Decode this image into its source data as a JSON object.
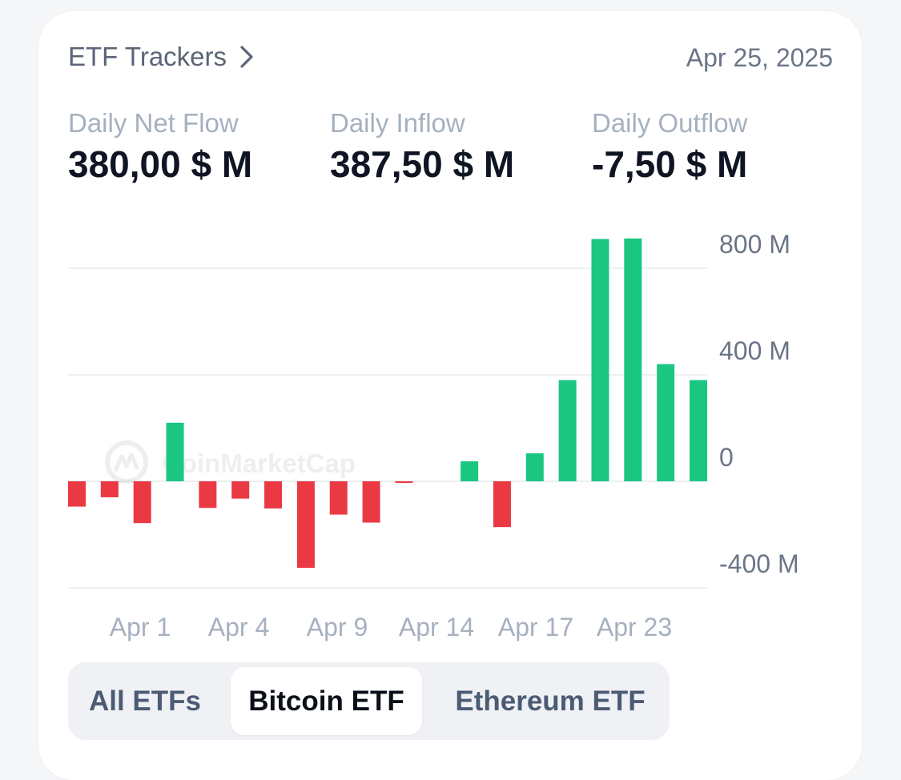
{
  "header": {
    "title": "ETF Trackers",
    "date": "Apr 25, 2025"
  },
  "stats": [
    {
      "label": "Daily Net Flow",
      "value": "380,00 $ M"
    },
    {
      "label": "Daily Inflow",
      "value": "387,50 $ M"
    },
    {
      "label": "Daily Outflow",
      "value": "-7,50 $ M"
    }
  ],
  "watermark": "CoinMarketCap",
  "colors": {
    "positive": "#1bc681",
    "negative": "#ea3943",
    "grid": "#eceef2",
    "axis_text": "#6b7587"
  },
  "chart_data": {
    "type": "bar",
    "title": "",
    "xlabel": "",
    "ylabel": "",
    "ylim": [
      -400,
      900
    ],
    "y_ticks": [
      {
        "value": 800,
        "label": "800  M"
      },
      {
        "value": 400,
        "label": "400  M"
      },
      {
        "value": 0,
        "label": "0"
      },
      {
        "value": -400,
        "label": "-400  M"
      }
    ],
    "x_ticks": [
      {
        "index": 2,
        "label": "Apr 1"
      },
      {
        "index": 5,
        "label": "Apr 4"
      },
      {
        "index": 8,
        "label": "Apr 9"
      },
      {
        "index": 11,
        "label": "Apr 14"
      },
      {
        "index": 14,
        "label": "Apr 17"
      },
      {
        "index": 17,
        "label": "Apr 23"
      }
    ],
    "values": [
      -95,
      -60,
      -157,
      220,
      -100,
      -65,
      -102,
      -325,
      -125,
      -155,
      -5,
      0,
      75,
      -172,
      105,
      380,
      910,
      912,
      440,
      380
    ],
    "grid": true,
    "legend": "none"
  },
  "tabs": [
    {
      "label": "All ETFs",
      "active": false
    },
    {
      "label": "Bitcoin ETF",
      "active": true
    },
    {
      "label": "Ethereum ETF",
      "active": false
    }
  ]
}
